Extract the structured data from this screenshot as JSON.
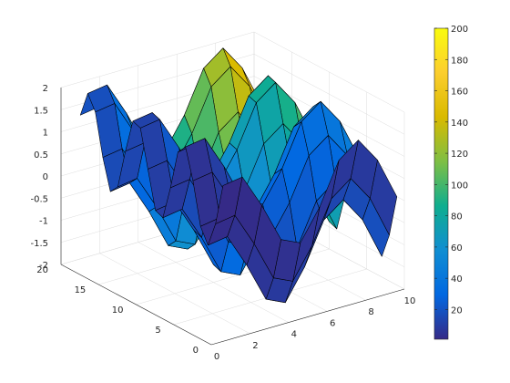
{
  "chart_data": {
    "type": "surface",
    "title": "",
    "xlabel": "",
    "ylabel": "",
    "zlabel": "",
    "grid": true,
    "colormap": "parula",
    "x": {
      "min": 1,
      "max": 10,
      "count": 10
    },
    "y": {
      "min": 1,
      "max": 20,
      "count": 20
    },
    "z_formula": "sin(x) + cos(y)",
    "color_formula": "x * y",
    "xlim": [
      0,
      10
    ],
    "ylim": [
      0,
      20
    ],
    "zlim": [
      -2,
      2
    ],
    "clim": [
      1,
      200
    ],
    "x_ticks": [
      "0",
      "2",
      "4",
      "6",
      "8",
      "10"
    ],
    "y_ticks": [
      "0",
      "5",
      "10",
      "15",
      "20"
    ],
    "z_ticks": [
      "-2",
      "-1.5",
      "-1",
      "-0.5",
      "0",
      "0.5",
      "1",
      "1.5",
      "2"
    ],
    "colorbar": {
      "position": "right",
      "ticks": [
        "20",
        "40",
        "60",
        "80",
        "100",
        "120",
        "140",
        "160",
        "180",
        "200"
      ]
    },
    "colors": {
      "parula": [
        "#352a87",
        "#0268e1",
        "#108ed2",
        "#0fae8f",
        "#7ebf44",
        "#d9ba00",
        "#fcce2e",
        "#f9fb0e"
      ],
      "edge": "#000000",
      "grid": "#dcdcdc",
      "axis": "#262626"
    }
  }
}
